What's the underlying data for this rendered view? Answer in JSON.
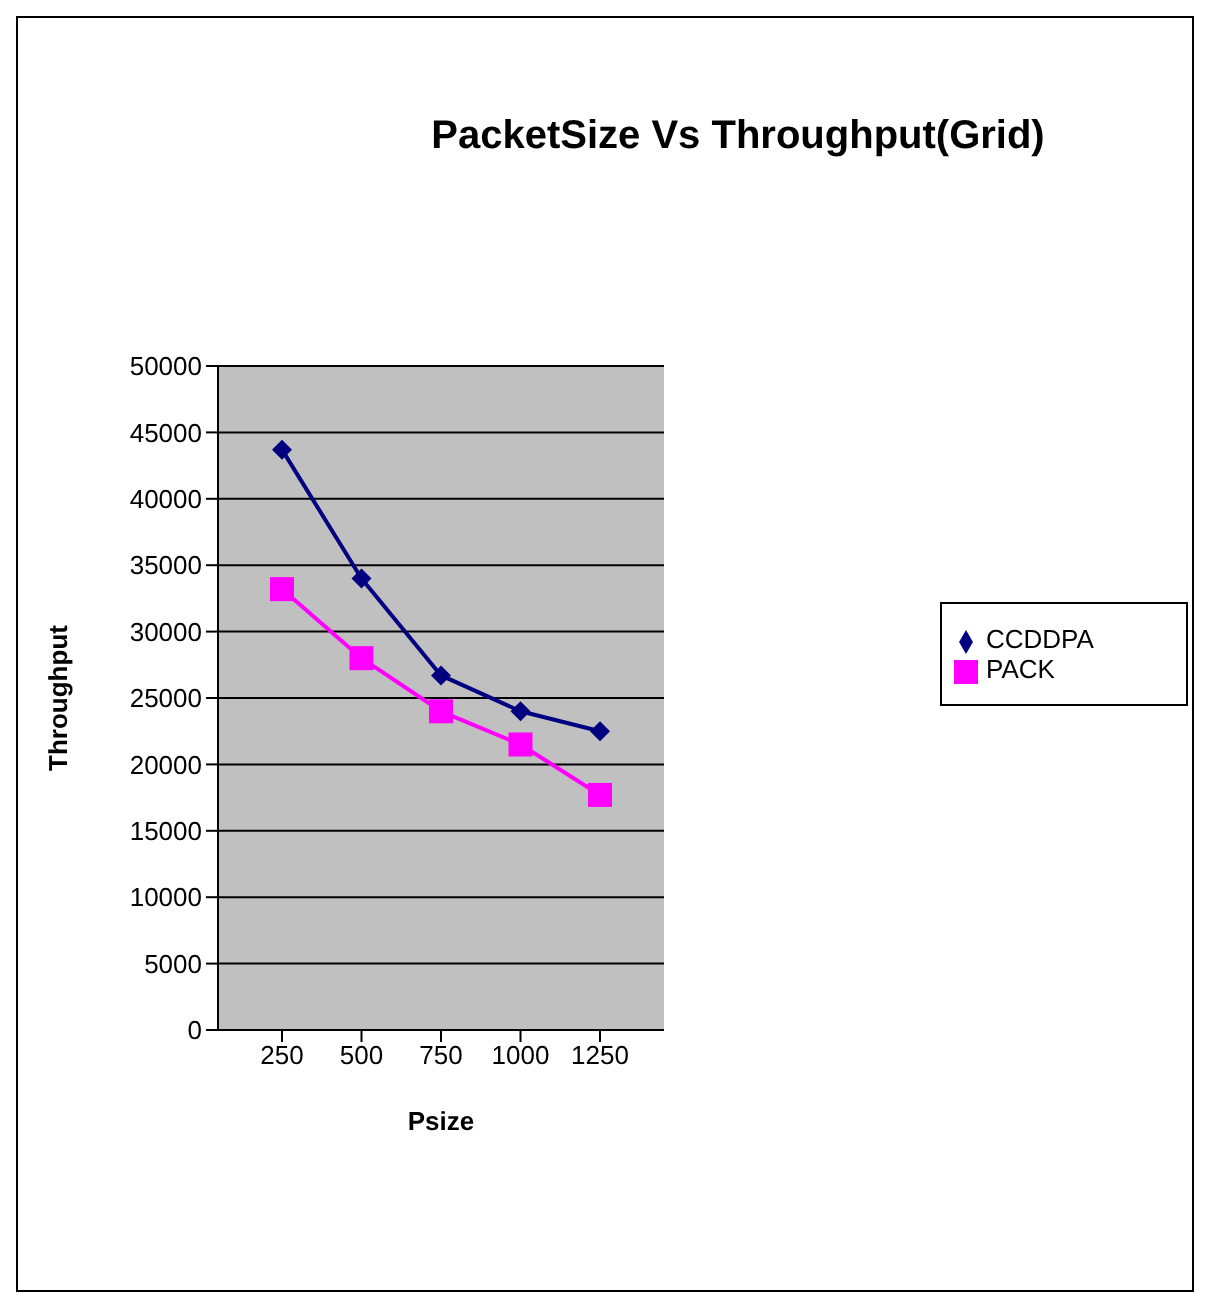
{
  "chart_data": {
    "type": "line",
    "title": "PacketSize Vs Throughput(Grid)",
    "xlabel": "Psize",
    "ylabel": "Throughput",
    "categories": [
      "250",
      "500",
      "750",
      "1000",
      "1250"
    ],
    "series": [
      {
        "name": "CCDDPA",
        "color": "#000080",
        "marker": "diamond",
        "values": [
          43700,
          34000,
          26700,
          24000,
          22500
        ]
      },
      {
        "name": "PACK",
        "color": "#ff00ff",
        "marker": "square",
        "values": [
          33200,
          28000,
          24000,
          21500,
          17700
        ]
      }
    ],
    "ylim": [
      0,
      50000
    ],
    "yticks": [
      0,
      5000,
      10000,
      15000,
      20000,
      25000,
      30000,
      35000,
      40000,
      45000,
      50000
    ],
    "grid": "y",
    "legend": "right"
  }
}
